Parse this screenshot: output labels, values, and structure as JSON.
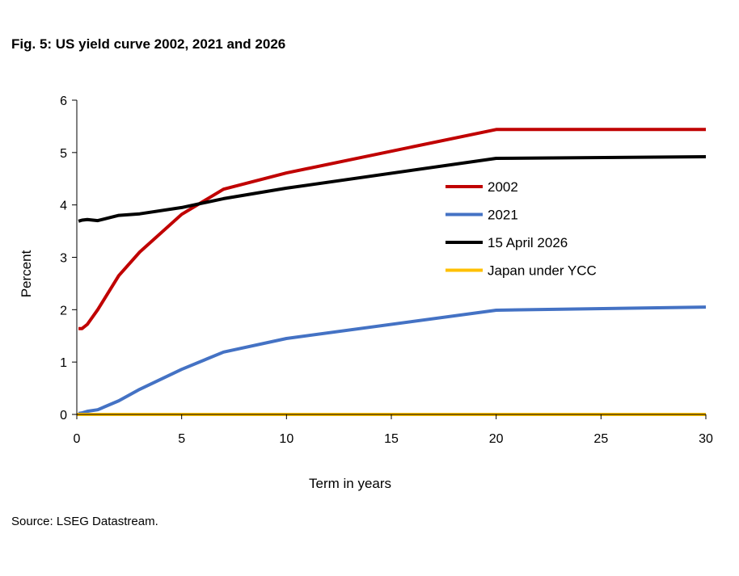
{
  "figure": {
    "title": "Fig. 5: US yield curve 2002, 2021 and 2026",
    "source": "Source: LSEG Datastream."
  },
  "colors": {
    "series_2002": "#C00000",
    "series_2021": "#4472C4",
    "series_2026": "#000000",
    "series_japan": "#FFC000",
    "axis": "#000000"
  },
  "chart_data": {
    "type": "line",
    "xlabel": "Term in years",
    "ylabel": "Percent",
    "xlim": [
      0,
      30
    ],
    "ylim": [
      0,
      6
    ],
    "xticks": [
      0,
      5,
      10,
      15,
      20,
      25,
      30
    ],
    "yticks": [
      0,
      1,
      2,
      3,
      4,
      5,
      6
    ],
    "grid": false,
    "legend_position": "right-center",
    "series": [
      {
        "name": "2002",
        "color": "#C00000",
        "x": [
          0.08,
          0.25,
          0.5,
          1,
          2,
          3,
          5,
          7,
          10,
          20,
          30
        ],
        "y": [
          1.64,
          1.64,
          1.72,
          2.0,
          2.65,
          3.1,
          3.82,
          4.3,
          4.61,
          5.44,
          5.44
        ]
      },
      {
        "name": "2021",
        "color": "#4472C4",
        "x": [
          0.08,
          0.25,
          0.5,
          1,
          2,
          3,
          5,
          7,
          10,
          20,
          30
        ],
        "y": [
          0.02,
          0.03,
          0.06,
          0.09,
          0.26,
          0.48,
          0.86,
          1.19,
          1.45,
          1.99,
          2.05
        ]
      },
      {
        "name": "15 April 2026",
        "color": "#000000",
        "x": [
          0.08,
          0.25,
          0.5,
          1,
          2,
          3,
          5,
          7,
          10,
          20,
          30
        ],
        "y": [
          3.69,
          3.71,
          3.72,
          3.7,
          3.8,
          3.83,
          3.95,
          4.12,
          4.32,
          4.89,
          4.92
        ]
      },
      {
        "name": "Japan under YCC",
        "color": "#FFC000",
        "x": [
          0,
          30
        ],
        "y": [
          0,
          0
        ]
      }
    ]
  }
}
